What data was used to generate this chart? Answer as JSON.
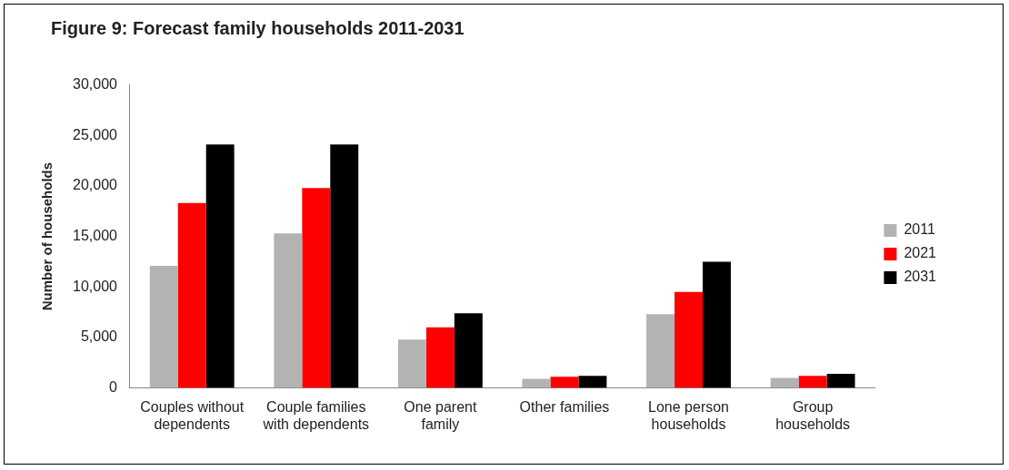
{
  "chart_data": {
    "type": "bar",
    "title": "Figure 9: Forecast family households 2011-2031",
    "ylabel": "Number of households",
    "categories": [
      "Couples without dependents",
      "Couple families with dependents",
      "One parent family",
      "Other families",
      "Lone person households",
      "Group households"
    ],
    "series": [
      {
        "name": "2011",
        "color": "#b3b3b3",
        "values": [
          12100,
          15300,
          4800,
          900,
          7300,
          1000
        ]
      },
      {
        "name": "2021",
        "color": "#ff0000",
        "values": [
          18300,
          19800,
          6000,
          1100,
          9500,
          1200
        ]
      },
      {
        "name": "2031",
        "color": "#000000",
        "values": [
          24100,
          24100,
          7400,
          1200,
          12500,
          1400
        ]
      }
    ],
    "ylim": [
      0,
      30000
    ],
    "yticks": [
      0,
      {
        "value": 5000,
        "label": "5,000"
      },
      {
        "value": 10000,
        "label": "10,000"
      },
      {
        "value": 15000,
        "label": "15,000"
      },
      {
        "value": 20000,
        "label": "20,000"
      },
      {
        "value": 25000,
        "label": "25,000"
      },
      {
        "value": 30000,
        "label": "30,000"
      }
    ],
    "grid": false,
    "legend": "right"
  }
}
